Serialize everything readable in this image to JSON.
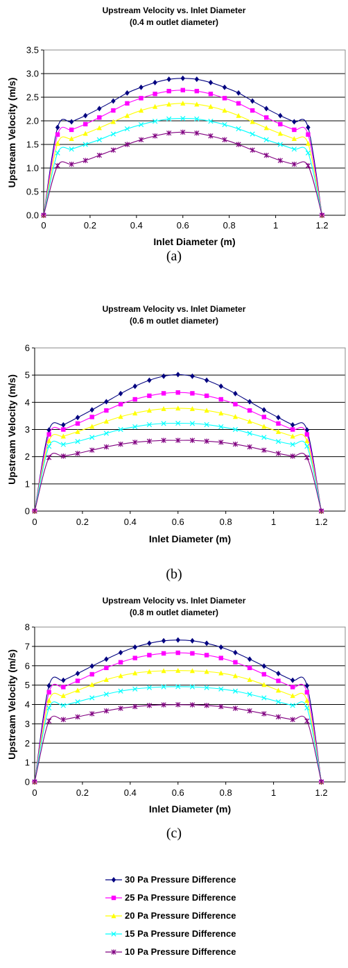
{
  "captions": [
    "(a)",
    "(b)",
    "(c)"
  ],
  "legend": [
    {
      "label": "30 Pa Pressure Difference",
      "color": "#000080",
      "marker": "diamond"
    },
    {
      "label": "25 Pa Pressure Difference",
      "color": "#ff00ff",
      "marker": "square"
    },
    {
      "label": "20 Pa Pressure Difference",
      "color": "#ffff00",
      "marker": "triangle"
    },
    {
      "label": "15 Pa Pressure Difference",
      "color": "#00ffff",
      "marker": "x"
    },
    {
      "label": "10 Pa Pressure Difference",
      "color": "#800080",
      "marker": "star"
    }
  ],
  "chart_data": [
    {
      "type": "line",
      "title": "Upstream Velocity vs. Inlet Diameter",
      "subtitle": "(0.4 m outlet diameter)",
      "xlabel": "Inlet Diameter (m)",
      "ylabel": "Upstream Velocity (m/s)",
      "xlim": [
        0,
        1.3
      ],
      "ylim": [
        0,
        3.5
      ],
      "xticks": [
        "0",
        "0.2",
        "0.4",
        "0.6",
        "0.8",
        "1",
        "1.2"
      ],
      "yticks": [
        "0.0",
        "0.5",
        "1.0",
        "1.5",
        "2.0",
        "2.5",
        "3.0",
        "3.5"
      ],
      "grid": "horizontal",
      "x": [
        0,
        0.06,
        0.12,
        0.18,
        0.24,
        0.3,
        0.36,
        0.42,
        0.48,
        0.54,
        0.6,
        0.66,
        0.72,
        0.78,
        0.84,
        0.9,
        0.96,
        1.02,
        1.08,
        1.14,
        1.2
      ],
      "series": [
        {
          "name": "30 Pa Pressure Difference",
          "values": [
            0,
            1.86,
            1.98,
            2.11,
            2.26,
            2.42,
            2.59,
            2.71,
            2.81,
            2.88,
            2.9,
            2.88,
            2.81,
            2.71,
            2.59,
            2.42,
            2.26,
            2.11,
            1.98,
            1.86,
            0
          ]
        },
        {
          "name": "25 Pa Pressure Difference",
          "values": [
            0,
            1.71,
            1.81,
            1.93,
            2.07,
            2.22,
            2.37,
            2.48,
            2.57,
            2.63,
            2.65,
            2.63,
            2.57,
            2.48,
            2.37,
            2.22,
            2.07,
            1.93,
            1.81,
            1.71,
            0
          ]
        },
        {
          "name": "20 Pa Pressure Difference",
          "values": [
            0,
            1.52,
            1.62,
            1.73,
            1.85,
            1.98,
            2.11,
            2.22,
            2.3,
            2.35,
            2.37,
            2.35,
            2.3,
            2.22,
            2.11,
            1.98,
            1.85,
            1.73,
            1.62,
            1.52,
            0
          ]
        },
        {
          "name": "15 Pa Pressure Difference",
          "values": [
            0,
            1.32,
            1.4,
            1.5,
            1.6,
            1.72,
            1.83,
            1.92,
            1.99,
            2.04,
            2.05,
            2.04,
            1.99,
            1.92,
            1.83,
            1.72,
            1.6,
            1.5,
            1.4,
            1.32,
            0
          ]
        },
        {
          "name": "10 Pa Pressure Difference",
          "values": [
            0,
            1.05,
            1.08,
            1.16,
            1.27,
            1.38,
            1.5,
            1.6,
            1.68,
            1.74,
            1.76,
            1.74,
            1.68,
            1.6,
            1.5,
            1.38,
            1.27,
            1.16,
            1.08,
            1.05,
            0
          ]
        }
      ]
    },
    {
      "type": "line",
      "title": "Upstream Velocity vs. Inlet Diameter",
      "subtitle": "(0.6 m outlet diameter)",
      "xlabel": "Inlet Diameter (m)",
      "ylabel": "Upstream Velocity (m/s)",
      "xlim": [
        0,
        1.3
      ],
      "ylim": [
        0,
        6
      ],
      "xticks": [
        "0",
        "0.2",
        "0.4",
        "0.6",
        "0.8",
        "1",
        "1.2"
      ],
      "yticks": [
        "0",
        "1",
        "2",
        "3",
        "4",
        "5",
        "6"
      ],
      "grid": "horizontal",
      "x": [
        0,
        0.06,
        0.12,
        0.18,
        0.24,
        0.3,
        0.36,
        0.42,
        0.48,
        0.54,
        0.6,
        0.66,
        0.72,
        0.78,
        0.84,
        0.9,
        0.96,
        1.02,
        1.08,
        1.14,
        1.2
      ],
      "series": [
        {
          "name": "30 Pa Pressure Difference",
          "values": [
            0,
            2.98,
            3.17,
            3.44,
            3.72,
            4.02,
            4.32,
            4.59,
            4.81,
            4.96,
            5.02,
            4.96,
            4.81,
            4.59,
            4.32,
            4.02,
            3.72,
            3.44,
            3.17,
            2.98,
            0
          ]
        },
        {
          "name": "25 Pa Pressure Difference",
          "values": [
            0,
            2.82,
            3.0,
            3.22,
            3.46,
            3.7,
            3.93,
            4.11,
            4.24,
            4.33,
            4.36,
            4.33,
            4.24,
            4.11,
            3.93,
            3.7,
            3.46,
            3.22,
            3.0,
            2.82,
            0
          ]
        },
        {
          "name": "20 Pa Pressure Difference",
          "values": [
            0,
            2.58,
            2.75,
            2.92,
            3.11,
            3.3,
            3.47,
            3.6,
            3.7,
            3.76,
            3.78,
            3.76,
            3.7,
            3.6,
            3.47,
            3.3,
            3.11,
            2.92,
            2.75,
            2.58,
            0
          ]
        },
        {
          "name": "15 Pa Pressure Difference",
          "values": [
            0,
            2.38,
            2.45,
            2.56,
            2.71,
            2.86,
            3.0,
            3.1,
            3.18,
            3.22,
            3.23,
            3.22,
            3.18,
            3.1,
            3.0,
            2.86,
            2.71,
            2.56,
            2.45,
            2.38,
            0
          ]
        },
        {
          "name": "10 Pa Pressure Difference",
          "values": [
            0,
            1.97,
            2.02,
            2.12,
            2.24,
            2.36,
            2.46,
            2.53,
            2.57,
            2.6,
            2.6,
            2.6,
            2.57,
            2.53,
            2.46,
            2.36,
            2.24,
            2.12,
            2.02,
            1.97,
            0
          ]
        }
      ]
    },
    {
      "type": "line",
      "title": "Upstream Velocity vs. Inlet Diameter",
      "subtitle": "(0.8 m outlet diameter)",
      "xlabel": "Inlet Diameter (m)",
      "ylabel": "Upstream Velocity (m/s)",
      "xlim": [
        0,
        1.3
      ],
      "ylim": [
        0,
        8
      ],
      "xticks": [
        "0",
        "0.2",
        "0.4",
        "0.6",
        "0.8",
        "1",
        "1.2"
      ],
      "yticks": [
        "0",
        "1",
        "2",
        "3",
        "4",
        "5",
        "6",
        "7",
        "8"
      ],
      "grid": "horizontal",
      "x": [
        0,
        0.06,
        0.12,
        0.18,
        0.24,
        0.3,
        0.36,
        0.42,
        0.48,
        0.54,
        0.6,
        0.66,
        0.72,
        0.78,
        0.84,
        0.9,
        0.96,
        1.02,
        1.08,
        1.14,
        1.2
      ],
      "series": [
        {
          "name": "30 Pa Pressure Difference",
          "values": [
            0,
            4.97,
            5.25,
            5.6,
            5.98,
            6.34,
            6.68,
            6.96,
            7.16,
            7.29,
            7.33,
            7.29,
            7.16,
            6.96,
            6.68,
            6.34,
            5.98,
            5.6,
            5.25,
            4.97,
            0
          ]
        },
        {
          "name": "25 Pa Pressure Difference",
          "values": [
            0,
            4.63,
            4.9,
            5.22,
            5.56,
            5.89,
            6.18,
            6.4,
            6.55,
            6.64,
            6.67,
            6.64,
            6.55,
            6.4,
            6.18,
            5.89,
            5.56,
            5.22,
            4.9,
            4.63,
            0
          ]
        },
        {
          "name": "20 Pa Pressure Difference",
          "values": [
            0,
            4.2,
            4.45,
            4.73,
            5.02,
            5.28,
            5.48,
            5.62,
            5.7,
            5.74,
            5.75,
            5.74,
            5.7,
            5.62,
            5.48,
            5.28,
            5.02,
            4.73,
            4.45,
            4.2,
            0
          ]
        },
        {
          "name": "15 Pa Pressure Difference",
          "values": [
            0,
            3.82,
            3.95,
            4.14,
            4.34,
            4.53,
            4.69,
            4.8,
            4.87,
            4.91,
            4.92,
            4.91,
            4.87,
            4.8,
            4.69,
            4.53,
            4.34,
            4.14,
            3.95,
            3.82,
            0
          ]
        },
        {
          "name": "10 Pa Pressure Difference",
          "values": [
            0,
            3.15,
            3.22,
            3.36,
            3.52,
            3.67,
            3.8,
            3.89,
            3.95,
            3.98,
            3.99,
            3.98,
            3.95,
            3.89,
            3.8,
            3.67,
            3.52,
            3.36,
            3.22,
            3.15,
            0
          ]
        }
      ]
    }
  ]
}
